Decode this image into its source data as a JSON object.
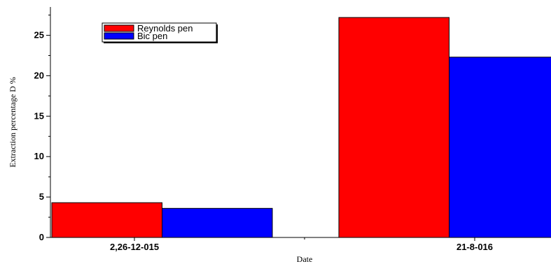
{
  "chart_data": {
    "type": "bar",
    "categories": [
      "2,26-12-015",
      "21-8-016"
    ],
    "series": [
      {
        "name": "Reynolds pen",
        "values": [
          4.3,
          27.2
        ],
        "color": "#ff0000"
      },
      {
        "name": "Bic pen",
        "values": [
          3.6,
          22.3
        ],
        "color": "#0000ff"
      }
    ],
    "title": "",
    "xlabel": "Date",
    "ylabel": "Extraction percentage D %",
    "ylim": [
      0,
      28.5
    ],
    "yticks": [
      0,
      5,
      10,
      15,
      20,
      25
    ],
    "ytick_labels": [
      "0",
      "5",
      "10",
      "15",
      "20",
      "25"
    ],
    "grid": false,
    "legend_position": "top-left"
  }
}
